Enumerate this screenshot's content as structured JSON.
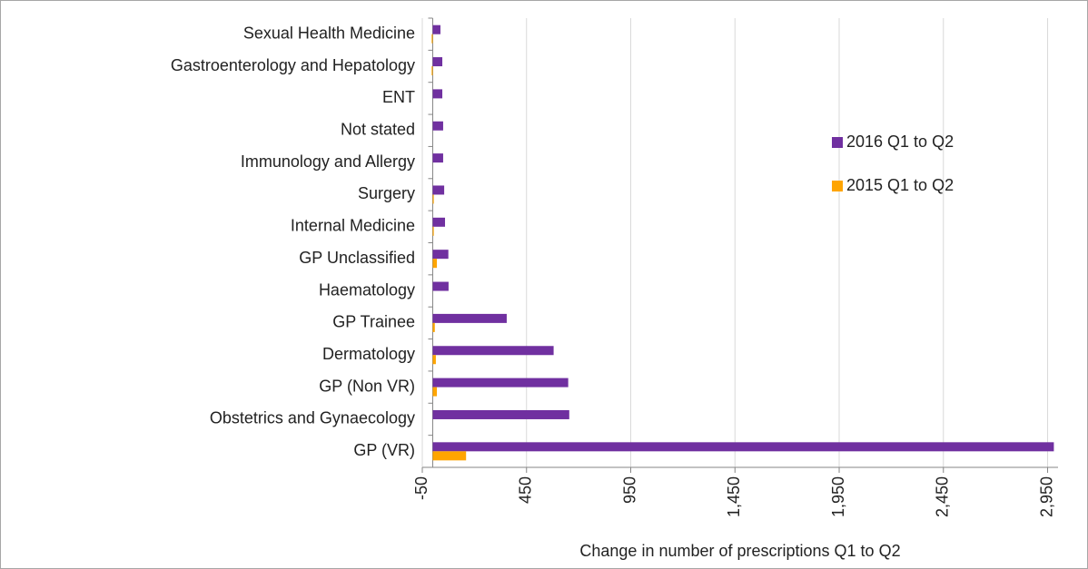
{
  "chart_data": {
    "type": "bar",
    "orientation": "horizontal",
    "x_label": "Change in number of prescriptions Q1 to Q2",
    "categories": [
      "Sexual Health Medicine",
      "Gastroenterology and Hepatology",
      "ENT",
      "Not stated",
      "Immunology and Allergy",
      "Surgery",
      "Internal Medicine",
      "GP Unclassified",
      "Haematology",
      "GP Trainee",
      "Dermatology",
      "GP (Non VR)",
      "Obstetrics and Gynaecology",
      "GP (VR)"
    ],
    "series": [
      {
        "name": "2016 Q1 to Q2",
        "color": "#7030a0",
        "values": [
          37,
          46,
          46,
          50,
          50,
          55,
          59,
          75,
          76,
          355,
          580,
          650,
          655,
          2980
        ]
      },
      {
        "name": "2015 Q1 to Q2",
        "color": "#ffa500",
        "values": [
          -5,
          -5,
          0,
          0,
          0,
          5,
          5,
          20,
          0,
          10,
          15,
          20,
          0,
          160
        ]
      }
    ],
    "xlim": [
      -50,
      3000
    ],
    "xticks": [
      -50,
      450,
      950,
      {
        "value": 1450,
        "label": "1,450"
      },
      {
        "value": 1950,
        "label": "1,950"
      },
      {
        "value": 2450,
        "label": "2,450"
      },
      {
        "value": 2950,
        "label": "2,950"
      }
    ],
    "grid": true,
    "legend": "right"
  }
}
